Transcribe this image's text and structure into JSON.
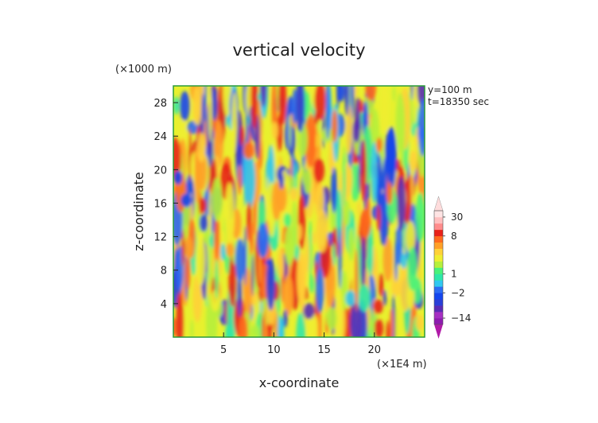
{
  "chart_data": {
    "type": "heatmap",
    "title": "vertical velocity",
    "xlabel": "x-coordinate",
    "ylabel": "z-coordinate",
    "x_unit": "(×1E4 m)",
    "y_unit": "(×1000 m)",
    "annotations": [
      "y=100 m",
      "t=18350 sec"
    ],
    "xlim": [
      0,
      25
    ],
    "ylim": [
      0,
      30
    ],
    "xticks": [
      5,
      10,
      15,
      20
    ],
    "yticks": [
      4,
      8,
      12,
      16,
      20,
      24,
      28
    ],
    "colorbar": {
      "labels": [
        "30",
        "8",
        "1",
        "−2",
        "−14"
      ],
      "label_values": [
        30,
        8,
        1,
        -2,
        -14
      ],
      "levels": [
        -20,
        -14,
        -8,
        -5,
        -3,
        -2,
        -1,
        0,
        1,
        2,
        3,
        4,
        5,
        6,
        8,
        12,
        20,
        30
      ],
      "colors": [
        "#8e1bb0",
        "#a52fc2",
        "#5a2bb5",
        "#2a3fd8",
        "#1446ee",
        "#2c6cf3",
        "#30c8f0",
        "#2ee8a8",
        "#49f27a",
        "#b6f03c",
        "#f0ee30",
        "#ffd238",
        "#ffa028",
        "#ff6a1e",
        "#e8221a",
        "#ff8c8c",
        "#ffc0c0",
        "#ffe4e4"
      ],
      "min_color": "#b01aa8",
      "max_color": "#ffdcdc"
    }
  }
}
